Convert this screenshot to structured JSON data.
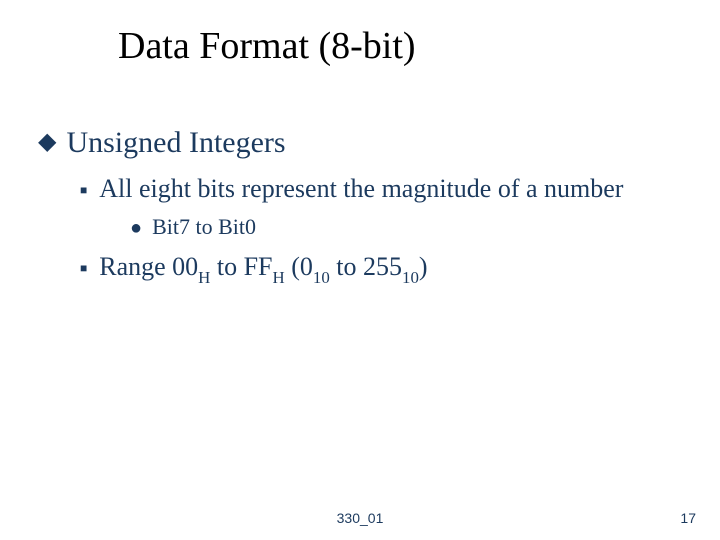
{
  "colors": {
    "text": "#1c3a5e",
    "title": "#000000",
    "background": "#ffffff"
  },
  "title": "Data Format (8-bit)",
  "lvl1": {
    "bullet": "◆",
    "text": "Unsigned Integers"
  },
  "lvl2a": {
    "bullet": "■",
    "text": "All eight bits represent the magnitude of a number"
  },
  "lvl3": {
    "bullet": "●",
    "text": "Bit7 to Bit0"
  },
  "lvl2b": {
    "bullet": "■",
    "prefix": "Range 00",
    "sub1": "H",
    "mid1": " to FF",
    "sub2": "H",
    "mid2": " (0",
    "sub3": "10",
    "mid3": " to 255",
    "sub4": "10",
    "suffix": ")"
  },
  "footer": {
    "center": "330_01",
    "pageNumber": "17"
  },
  "typography": {
    "title_fontsize": 38,
    "lvl1_fontsize": 30,
    "lvl2_fontsize": 26,
    "lvl3_fontsize": 22,
    "footer_fontsize": 14,
    "body_font": "Times New Roman",
    "footer_font": "Arial"
  }
}
